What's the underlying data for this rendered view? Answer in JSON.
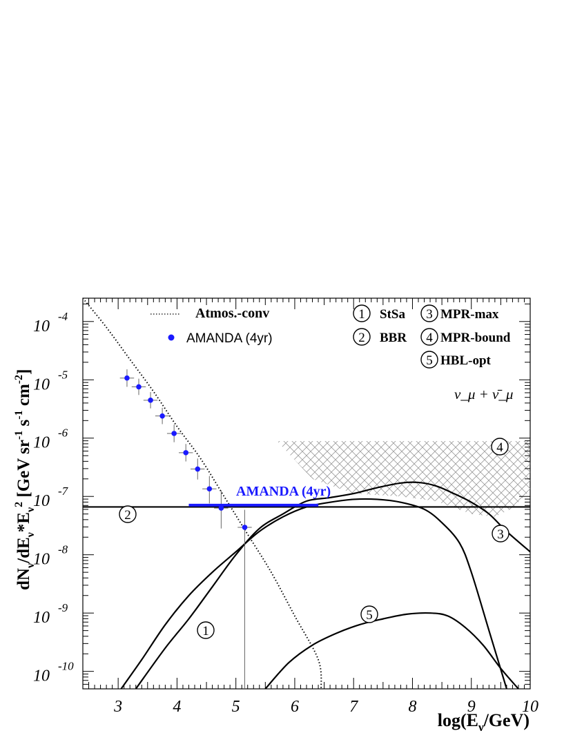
{
  "chart_data": {
    "type": "line",
    "xlabel": "log(E",
    "xlabel_sub": "ν",
    "xlabel_tail": "/GeV)",
    "ylabel_parts": {
      "a": "dN",
      "a_sub": "ν",
      "b": "/dE",
      "b_sub": "ν",
      "c": "*E",
      "c_sub": "ν",
      "c_sup": "2",
      "d": " [GeV sr",
      "d_sup": "-1",
      "e": " s",
      "e_sup": "-1",
      "f": " cm",
      "f_sup": "-2",
      "g": "]"
    },
    "xlim": [
      2.4,
      10
    ],
    "ylim_log10": [
      -10.3,
      -3.6
    ],
    "y_scale": "log",
    "x_ticks": [
      "3",
      "4",
      "5",
      "6",
      "7",
      "8",
      "9",
      "10"
    ],
    "y_ticks": [
      {
        "base": "10",
        "exp": "-4",
        "value": -4
      },
      {
        "base": "10",
        "exp": "-5",
        "value": -5
      },
      {
        "base": "10",
        "exp": "-6",
        "value": -6
      },
      {
        "base": "10",
        "exp": "-7",
        "value": -7
      },
      {
        "base": "10",
        "exp": "-8",
        "value": -8
      },
      {
        "base": "10",
        "exp": "-9",
        "value": -9
      },
      {
        "base": "10",
        "exp": "-10",
        "value": -10
      }
    ],
    "legend": {
      "atmos_label": "Atmos.-conv",
      "amanda_label": "AMANDA (4yr)",
      "models": [
        {
          "num": "1",
          "name": "StSa"
        },
        {
          "num": "2",
          "name": "BBR"
        },
        {
          "num": "3",
          "name": "MPR-max"
        },
        {
          "num": "4",
          "name": "MPR-bound"
        },
        {
          "num": "5",
          "name": "HBL-opt"
        }
      ],
      "neutrino_label": "ν_μ + ν̄_μ"
    },
    "limit_label": "AMANDA (4yr)",
    "curve_labels": [
      "1",
      "2",
      "3",
      "4",
      "5"
    ],
    "atmos_conv": {
      "name": "Atmos.-conv",
      "points": [
        [
          2.4,
          -3.6
        ],
        [
          2.8,
          -4.1
        ],
        [
          3.2,
          -4.65
        ],
        [
          3.6,
          -5.2
        ],
        [
          4.0,
          -5.8
        ],
        [
          4.4,
          -6.35
        ],
        [
          4.8,
          -7.0
        ],
        [
          5.2,
          -7.65
        ],
        [
          5.6,
          -8.3
        ],
        [
          6.0,
          -9.05
        ],
        [
          6.4,
          -9.8
        ],
        [
          6.45,
          -10.3
        ]
      ]
    },
    "amanda_points": {
      "name": "AMANDA (4yr)",
      "x": [
        3.15,
        3.35,
        3.55,
        3.75,
        3.95,
        4.15,
        4.35,
        4.55,
        4.75,
        5.15
      ],
      "y": [
        -4.97,
        -5.12,
        -5.35,
        -5.62,
        -5.92,
        -6.25,
        -6.53,
        -6.87,
        -7.2,
        -7.53
      ],
      "y_err_lo": [
        0.15,
        0.14,
        0.14,
        0.14,
        0.15,
        0.15,
        0.18,
        0.25,
        0.35,
        2.8
      ],
      "y_err_hi": [
        0.15,
        0.14,
        0.14,
        0.14,
        0.15,
        0.15,
        0.18,
        0.22,
        0.3,
        0.3
      ],
      "x_err": 0.12
    },
    "amanda_limit": {
      "name": "AMANDA (4yr)",
      "x": [
        4.2,
        6.4
      ],
      "y": -7.15,
      "color": "#1a1aff"
    },
    "series": [
      {
        "name": "StSa",
        "points": [
          [
            3.05,
            -10.3
          ],
          [
            3.4,
            -9.8
          ],
          [
            3.8,
            -9.2
          ],
          [
            4.2,
            -8.7
          ],
          [
            4.6,
            -8.3
          ],
          [
            5.0,
            -7.95
          ],
          [
            5.4,
            -7.6
          ],
          [
            5.8,
            -7.35
          ],
          [
            6.2,
            -7.18
          ],
          [
            6.6,
            -7.1
          ],
          [
            7.0,
            -7.05
          ],
          [
            7.4,
            -7.05
          ],
          [
            7.8,
            -7.1
          ],
          [
            8.2,
            -7.22
          ],
          [
            8.5,
            -7.45
          ],
          [
            8.8,
            -7.8
          ],
          [
            9.0,
            -8.3
          ],
          [
            9.3,
            -9.3
          ],
          [
            9.6,
            -10.3
          ]
        ]
      },
      {
        "name": "BBR",
        "points": [
          [
            2.4,
            -7.18
          ],
          [
            10.0,
            -7.18
          ]
        ]
      },
      {
        "name": "MPR-max",
        "points": [
          [
            3.3,
            -10.3
          ],
          [
            3.8,
            -9.6
          ],
          [
            4.2,
            -9.1
          ],
          [
            4.6,
            -8.55
          ],
          [
            5.0,
            -8.0
          ],
          [
            5.4,
            -7.55
          ],
          [
            5.8,
            -7.3
          ],
          [
            6.2,
            -7.08
          ],
          [
            6.6,
            -7.02
          ],
          [
            7.0,
            -6.95
          ],
          [
            7.4,
            -6.85
          ],
          [
            7.8,
            -6.77
          ],
          [
            8.1,
            -6.76
          ],
          [
            8.4,
            -6.82
          ],
          [
            8.7,
            -6.95
          ],
          [
            9.0,
            -7.1
          ],
          [
            9.3,
            -7.3
          ],
          [
            9.6,
            -7.6
          ],
          [
            10.0,
            -7.95
          ]
        ]
      },
      {
        "name": "HBL-opt",
        "points": [
          [
            5.5,
            -10.3
          ],
          [
            5.9,
            -9.85
          ],
          [
            6.3,
            -9.55
          ],
          [
            6.7,
            -9.35
          ],
          [
            7.1,
            -9.2
          ],
          [
            7.5,
            -9.1
          ],
          [
            7.9,
            -9.02
          ],
          [
            8.3,
            -9.0
          ],
          [
            8.6,
            -9.05
          ],
          [
            8.9,
            -9.25
          ],
          [
            9.2,
            -9.55
          ],
          [
            9.5,
            -9.95
          ],
          [
            9.8,
            -10.3
          ]
        ]
      }
    ],
    "band": {
      "name": "MPR-bound",
      "upper": [
        [
          5.7,
          -6.05
        ],
        [
          10.0,
          -6.05
        ]
      ],
      "lower": [
        [
          5.7,
          -6.05
        ],
        [
          6.3,
          -6.7
        ],
        [
          7.0,
          -6.95
        ],
        [
          7.8,
          -7.0
        ],
        [
          8.4,
          -7.08
        ],
        [
          9.0,
          -7.3
        ],
        [
          9.4,
          -7.35
        ],
        [
          9.7,
          -7.2
        ],
        [
          10.0,
          -6.9
        ]
      ]
    },
    "colors": {
      "axis": "#000000",
      "curve": "#000000",
      "amanda": "#1a1aff",
      "hatch": "#9a9a9a"
    }
  }
}
